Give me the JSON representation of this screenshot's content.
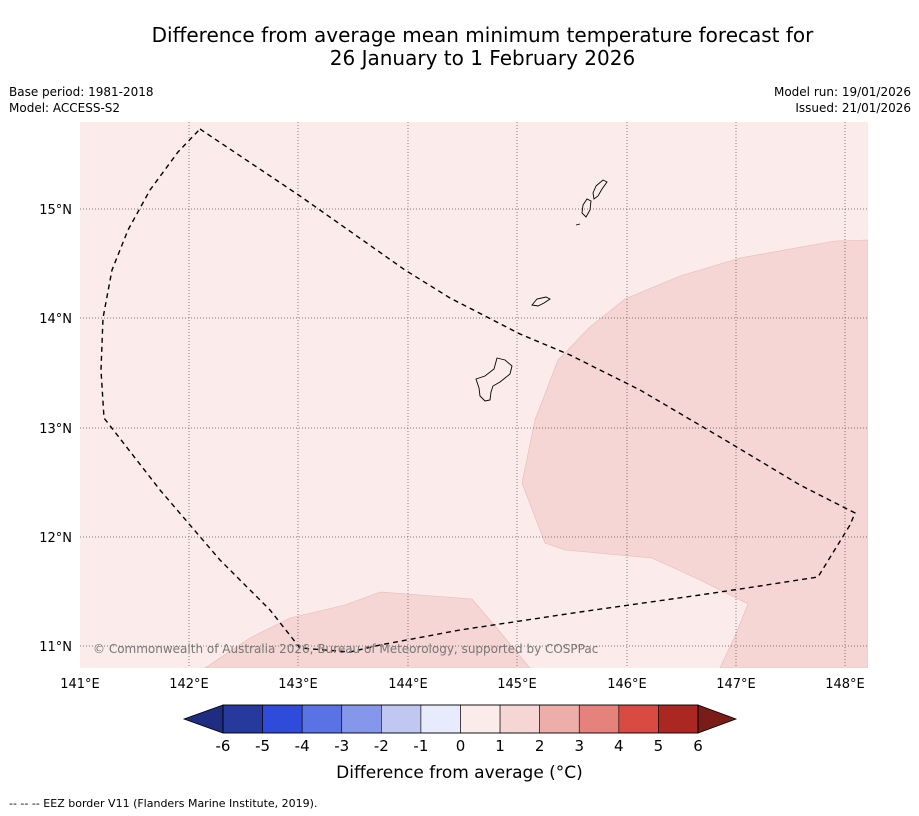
{
  "title": {
    "line1": "Difference from average mean minimum temperature forecast for",
    "line2": "26 January to 1 February 2026"
  },
  "meta": {
    "base_period": "Base period: 1981-2018",
    "model": "Model: ACCESS-S2",
    "model_run": "Model run: 19/01/2026",
    "issued": "Issued: 21/01/2026"
  },
  "map": {
    "lon_range": [
      141.0,
      148.2
    ],
    "lat_range": [
      10.8,
      15.8
    ],
    "lon_ticks": [
      "141°E",
      "142°E",
      "143°E",
      "144°E",
      "145°E",
      "146°E",
      "147°E",
      "148°E"
    ],
    "lat_ticks": [
      "15°N",
      "14°N",
      "13°N",
      "12°N",
      "11°N"
    ],
    "copyright": "© Commonwealth of Australia 2026, Bureau of Meteorology, supported by COSPPac",
    "base_class_color": "#fbebea",
    "warm_class_color": "#f5d6d4"
  },
  "colorbar": {
    "ticks": [
      "-6",
      "-5",
      "-4",
      "-3",
      "-2",
      "-1",
      "0",
      "1",
      "2",
      "3",
      "4",
      "5",
      "6"
    ],
    "colors": [
      "#26399c",
      "#2f4bd9",
      "#5a73e4",
      "#8597ea",
      "#c0c8f2",
      "#e7ebfb",
      "#fbebea",
      "#f5d6d4",
      "#edaea9",
      "#e5827c",
      "#d84a42",
      "#ab2822"
    ],
    "extend_low": "#1e2d82",
    "extend_high": "#7a1c18",
    "label": "Difference from average (°C)"
  },
  "footer": {
    "legend_text": "--  --  -- EEZ border V11 (Flanders Marine Institute, 2019)."
  }
}
